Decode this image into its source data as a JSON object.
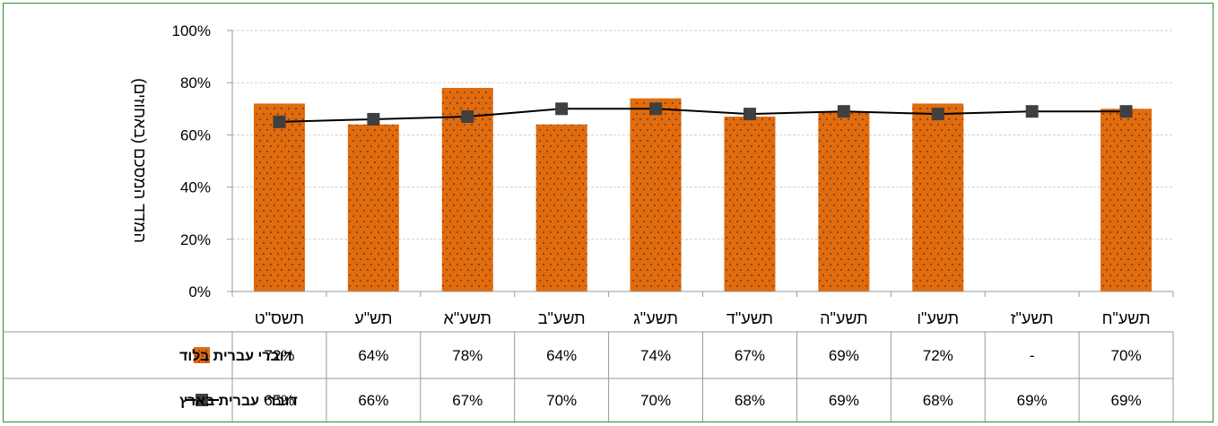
{
  "chart_data": {
    "type": "bar",
    "categories": [
      "תשס\"ט",
      "תש\"ע",
      "תשע\"א",
      "תשע\"ב",
      "תשע\"ג",
      "תשע\"ד",
      "תשע\"ה",
      "תשע\"ו",
      "תשע\"ז",
      "תשע\"ח"
    ],
    "ylabel": "המדד המסכם (באחוזים)",
    "ylim": [
      0,
      100
    ],
    "y_ticks": [
      "0%",
      "20%",
      "40%",
      "60%",
      "80%",
      "100%"
    ],
    "grid": true,
    "series": [
      {
        "name": "דוברי עברית בלוד",
        "kind": "bar",
        "color": "#e26b0a",
        "values": [
          72,
          64,
          78,
          64,
          74,
          67,
          69,
          72,
          null,
          70
        ],
        "labels": [
          "72%",
          "64%",
          "78%",
          "64%",
          "74%",
          "67%",
          "69%",
          "72%",
          "-",
          "70%"
        ]
      },
      {
        "name": "דוברי עברית בארץ",
        "kind": "line",
        "color": "#000000",
        "marker_color": "#404040",
        "values": [
          65,
          66,
          67,
          70,
          70,
          68,
          69,
          68,
          69,
          69
        ],
        "labels": [
          "65%",
          "66%",
          "67%",
          "70%",
          "70%",
          "68%",
          "69%",
          "68%",
          "69%",
          "69%"
        ]
      }
    ],
    "legend_placement": "left of data table"
  }
}
